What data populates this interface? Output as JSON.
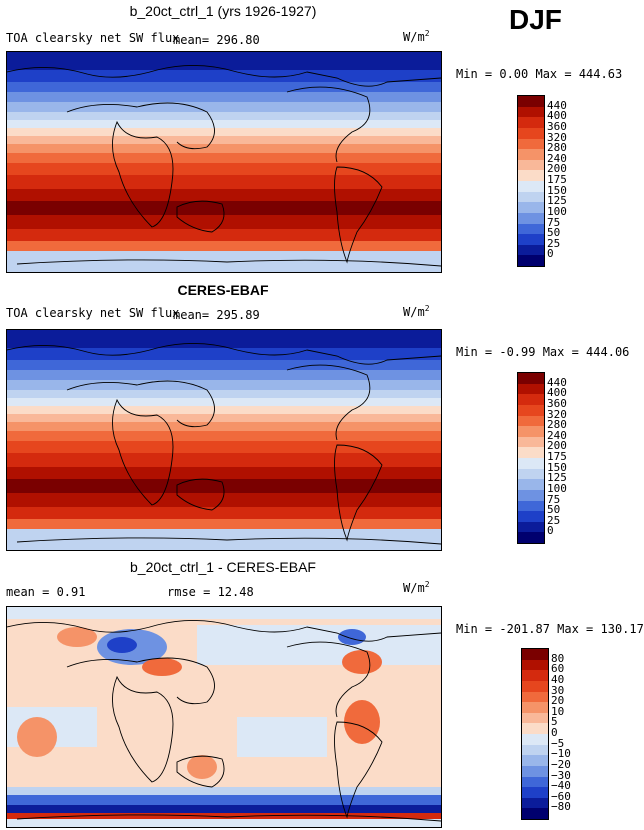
{
  "season": "DJF",
  "panels": [
    {
      "title": "b_20ct_ctrl_1 (yrs 1926-1927)",
      "variable": "TOA clearsky net SW flux",
      "mean_text": "mean= 296.80",
      "units_base": "W/m",
      "units_exp": "2",
      "minmax": "Min =   0.00 Max = 444.63",
      "colorbar": {
        "labels": [
          "440",
          "400",
          "360",
          "320",
          "280",
          "240",
          "200",
          "175",
          "150",
          "125",
          "100",
          "75",
          "50",
          "25",
          "0"
        ],
        "colors": [
          "#7a0000",
          "#b01000",
          "#d42a0e",
          "#e6461e",
          "#f06a3c",
          "#f59368",
          "#f9b899",
          "#fbdcc8",
          "#dce8f6",
          "#bfd3f0",
          "#99b6ea",
          "#6e92e2",
          "#3f67d8",
          "#1e40c8",
          "#0b1c9a",
          "#00006e"
        ]
      },
      "chart_data": {
        "type": "heatmap",
        "title": "b_20ct_ctrl_1 (yrs 1926-1927)",
        "mean": 296.8,
        "min": 0.0,
        "max": 444.63,
        "units": "W/m2",
        "levels": [
          0,
          25,
          50,
          75,
          100,
          125,
          150,
          175,
          200,
          240,
          280,
          320,
          360,
          400,
          440
        ]
      }
    },
    {
      "title": "CERES-EBAF",
      "variable": "TOA clearsky net SW flux",
      "mean_text": "mean= 295.89",
      "units_base": "W/m",
      "units_exp": "2",
      "minmax": "Min =  -0.99 Max = 444.06",
      "colorbar": {
        "labels": [
          "440",
          "400",
          "360",
          "320",
          "280",
          "240",
          "200",
          "175",
          "150",
          "125",
          "100",
          "75",
          "50",
          "25",
          "0"
        ],
        "colors": [
          "#7a0000",
          "#b01000",
          "#d42a0e",
          "#e6461e",
          "#f06a3c",
          "#f59368",
          "#f9b899",
          "#fbdcc8",
          "#dce8f6",
          "#bfd3f0",
          "#99b6ea",
          "#6e92e2",
          "#3f67d8",
          "#1e40c8",
          "#0b1c9a",
          "#00006e"
        ]
      },
      "chart_data": {
        "type": "heatmap",
        "title": "CERES-EBAF",
        "mean": 295.89,
        "min": -0.99,
        "max": 444.06,
        "units": "W/m2",
        "levels": [
          0,
          25,
          50,
          75,
          100,
          125,
          150,
          175,
          200,
          240,
          280,
          320,
          360,
          400,
          440
        ]
      }
    },
    {
      "title": "b_20ct_ctrl_1 - CERES-EBAF",
      "mean_text": "mean =    0.91",
      "rmse_text": "rmse =   12.48",
      "units_base": "W/m",
      "units_exp": "2",
      "minmax": "Min = -201.87 Max = 130.17",
      "colorbar": {
        "labels": [
          "80",
          "60",
          "40",
          "30",
          "20",
          "10",
          "5",
          "0",
          "−5",
          "−10",
          "−20",
          "−30",
          "−40",
          "−60",
          "−80"
        ],
        "colors": [
          "#7a0000",
          "#b01000",
          "#d42a0e",
          "#e6461e",
          "#f06a3c",
          "#f59368",
          "#f9b899",
          "#fbdcc8",
          "#dce8f6",
          "#bfd3f0",
          "#99b6ea",
          "#6e92e2",
          "#3f67d8",
          "#1e40c8",
          "#0b1c9a",
          "#00006e"
        ]
      },
      "chart_data": {
        "type": "heatmap",
        "title": "b_20ct_ctrl_1 - CERES-EBAF",
        "mean": 0.91,
        "rmse": 12.48,
        "min": -201.87,
        "max": 130.17,
        "units": "W/m2",
        "levels": [
          -80,
          -60,
          -40,
          -30,
          -20,
          -10,
          -5,
          0,
          5,
          10,
          20,
          30,
          40,
          60,
          80
        ]
      }
    }
  ]
}
